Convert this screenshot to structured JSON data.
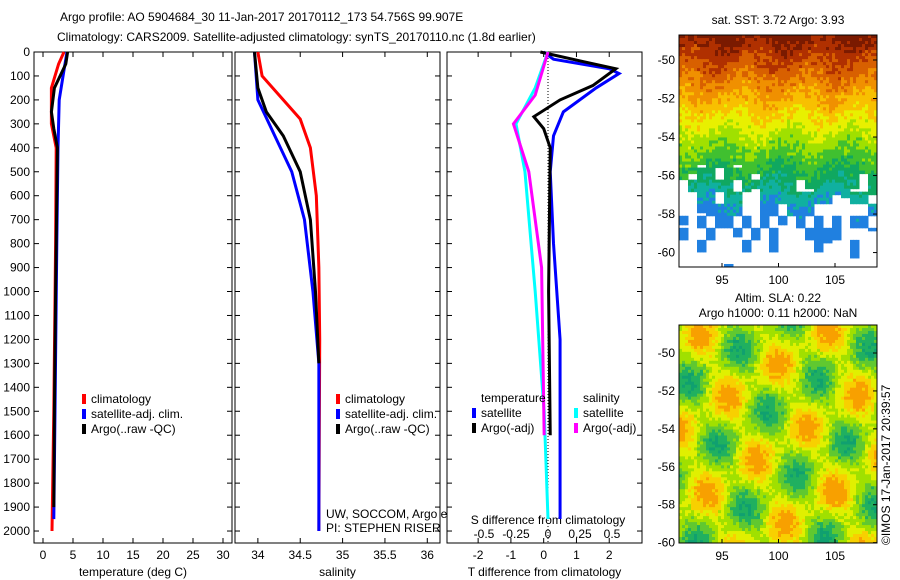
{
  "title": {
    "line1": "Argo profile: AO 5904684_30 11-Jan-2017 20170112_173 54.756S 99.907E",
    "line2": "Climatology: CARS2009. Satellite-adjusted climatology: synTS_20170110.nc (1.8d earlier)"
  },
  "colors": {
    "clim": "#ff0000",
    "sat": "#0000ff",
    "argo": "#000000",
    "s_sat": "#00ffff",
    "s_argo": "#ff00ff"
  },
  "chart_data": [
    {
      "type": "line",
      "name": "temperature",
      "xlabel": "temperature (deg C)",
      "xlim": [
        -1.5,
        31.5
      ],
      "ylim": [
        0,
        2050
      ],
      "xticks": [
        "0",
        "5",
        "10",
        "15",
        "20",
        "25",
        "30"
      ],
      "xtick_values": [
        0,
        5,
        10,
        15,
        20,
        25,
        30
      ],
      "yticks": [
        "0",
        "100",
        "200",
        "300",
        "400",
        "500",
        "600",
        "700",
        "800",
        "900",
        "1000",
        "1100",
        "1200",
        "1300",
        "1400",
        "1500",
        "1600",
        "1700",
        "1800",
        "1900",
        "2000"
      ],
      "legend": [
        "climatology",
        "satellite-adj. clim.",
        "Argo(..raw -QC)"
      ],
      "series": [
        {
          "name": "climatology",
          "color": "clim",
          "points": [
            [
              3.5,
              0
            ],
            [
              2.6,
              50
            ],
            [
              1.4,
              150
            ],
            [
              1.4,
              300
            ],
            [
              2.2,
              400
            ],
            [
              2.1,
              800
            ],
            [
              1.8,
              1500
            ],
            [
              1.5,
              2000
            ]
          ]
        },
        {
          "name": "satellite-adj. clim.",
          "color": "sat",
          "points": [
            [
              4,
              0
            ],
            [
              3.6,
              60
            ],
            [
              2.7,
              200
            ],
            [
              2.5,
              400
            ],
            [
              2.3,
              800
            ],
            [
              2.0,
              1500
            ],
            [
              1.8,
              1950
            ]
          ]
        },
        {
          "name": "Argo(..raw -QC)",
          "color": "argo",
          "points": [
            [
              4.1,
              0
            ],
            [
              3.8,
              50
            ],
            [
              1.9,
              150
            ],
            [
              1.4,
              250
            ],
            [
              1.8,
              320
            ],
            [
              2.4,
              400
            ],
            [
              2.1,
              1000
            ],
            [
              1.9,
              1500
            ],
            [
              1.8,
              1900
            ]
          ]
        }
      ]
    },
    {
      "type": "line",
      "name": "salinity",
      "xlabel": "salinity",
      "xlim": [
        33.73,
        36.15
      ],
      "ylim": [
        0,
        2050
      ],
      "xticks": [
        "34",
        "34.5",
        "35",
        "35.5",
        "36"
      ],
      "xtick_values": [
        34,
        34.5,
        35,
        35.5,
        36
      ],
      "legend": [
        "climatology",
        "satellite-adj. clim.",
        "Argo(..raw -QC)"
      ],
      "annotation": [
        "UW, SOCCOM, Argo equivalent",
        "PI: STEPHEN RISER"
      ],
      "series": [
        {
          "name": "climatology",
          "color": "clim",
          "points": [
            [
              34.0,
              0
            ],
            [
              34.05,
              100
            ],
            [
              34.3,
              200
            ],
            [
              34.5,
              280
            ],
            [
              34.62,
              400
            ],
            [
              34.69,
              600
            ],
            [
              34.72,
              900
            ],
            [
              34.73,
              1200
            ],
            [
              34.72,
              2000
            ]
          ]
        },
        {
          "name": "satellite-adj. clim.",
          "color": "sat",
          "points": [
            [
              33.96,
              0
            ],
            [
              34.0,
              200
            ],
            [
              34.2,
              350
            ],
            [
              34.4,
              500
            ],
            [
              34.55,
              700
            ],
            [
              34.65,
              1000
            ],
            [
              34.72,
              1300
            ],
            [
              34.72,
              2000
            ]
          ]
        },
        {
          "name": "Argo(..raw -QC)",
          "color": "argo",
          "points": [
            [
              33.96,
              0
            ],
            [
              34.0,
              150
            ],
            [
              34.1,
              250
            ],
            [
              34.3,
              350
            ],
            [
              34.5,
              500
            ],
            [
              34.62,
              700
            ],
            [
              34.68,
              1000
            ],
            [
              34.72,
              1300
            ]
          ]
        }
      ]
    },
    {
      "type": "line",
      "name": "difference",
      "xlabel": "T difference from climatology",
      "xlim": [
        -2.95,
        3.0
      ],
      "xticks": [
        "-2",
        "-1",
        "0",
        "1",
        "2"
      ],
      "xtick_values": [
        -2,
        -1,
        0,
        1,
        2
      ],
      "s_xlabel": "S difference from climatology",
      "s_xticks": [
        "-0.5",
        "-0.25",
        "0",
        "0.25",
        "0.5"
      ],
      "s_xtick_values": [
        -0.5,
        -0.25,
        0,
        0.25,
        0.5
      ],
      "legend_t_title": "temperature",
      "legend_s_title": "salinity",
      "legend": [
        "satellite",
        "Argo(-adj)",
        "satellite",
        "Argo(-adj)"
      ],
      "series": [
        {
          "name": "T satellite",
          "color": "sat",
          "units": "T",
          "points": [
            [
              0,
              0
            ],
            [
              0.3,
              30
            ],
            [
              2.0,
              70
            ],
            [
              2.3,
              90
            ],
            [
              1.6,
              150
            ],
            [
              0.6,
              250
            ],
            [
              0.3,
              350
            ],
            [
              0.2,
              500
            ],
            [
              0.3,
              800
            ],
            [
              0.5,
              1200
            ],
            [
              0.5,
              1950
            ]
          ]
        },
        {
          "name": "T Argo(-adj)",
          "color": "argo",
          "units": "T",
          "points": [
            [
              -0.1,
              0
            ],
            [
              1.2,
              40
            ],
            [
              2.2,
              70
            ],
            [
              1.5,
              140
            ],
            [
              0.5,
              200
            ],
            [
              -0.3,
              270
            ],
            [
              0,
              320
            ],
            [
              0.2,
              400
            ],
            [
              0.15,
              1000
            ],
            [
              0.2,
              1600
            ]
          ]
        },
        {
          "name": "S satellite",
          "color": "s_sat",
          "units": "S",
          "points": [
            [
              0,
              0
            ],
            [
              -0.1,
              150
            ],
            [
              -0.25,
              300
            ],
            [
              -0.18,
              500
            ],
            [
              -0.1,
              1000
            ],
            [
              -0.03,
              1500
            ],
            [
              0,
              1950
            ]
          ]
        },
        {
          "name": "S Argo(-adj)",
          "color": "s_argo",
          "units": "S",
          "points": [
            [
              0,
              0
            ],
            [
              -0.1,
              180
            ],
            [
              -0.27,
              300
            ],
            [
              -0.15,
              500
            ],
            [
              -0.05,
              900
            ],
            [
              -0.03,
              1600
            ]
          ]
        }
      ]
    },
    {
      "type": "heatmap",
      "name": "sst-map",
      "title": "sat. SST: 3.72 Argo: 3.93",
      "xticks": [
        "95",
        "100",
        "105"
      ],
      "yticks": [
        "-50",
        "-52",
        "-54",
        "-56",
        "-58",
        "-60"
      ]
    },
    {
      "type": "heatmap",
      "name": "sla-map",
      "title1": "Altim. SLA: 0.22",
      "title2": "Argo h1000: 0.11 h2000: NaN",
      "xticks": [
        "95",
        "100",
        "105"
      ],
      "yticks": [
        "-50",
        "-52",
        "-54",
        "-56",
        "-58",
        "-60"
      ]
    }
  ],
  "watermark": "©IMOS 17-Jan-2017 20:39:57"
}
